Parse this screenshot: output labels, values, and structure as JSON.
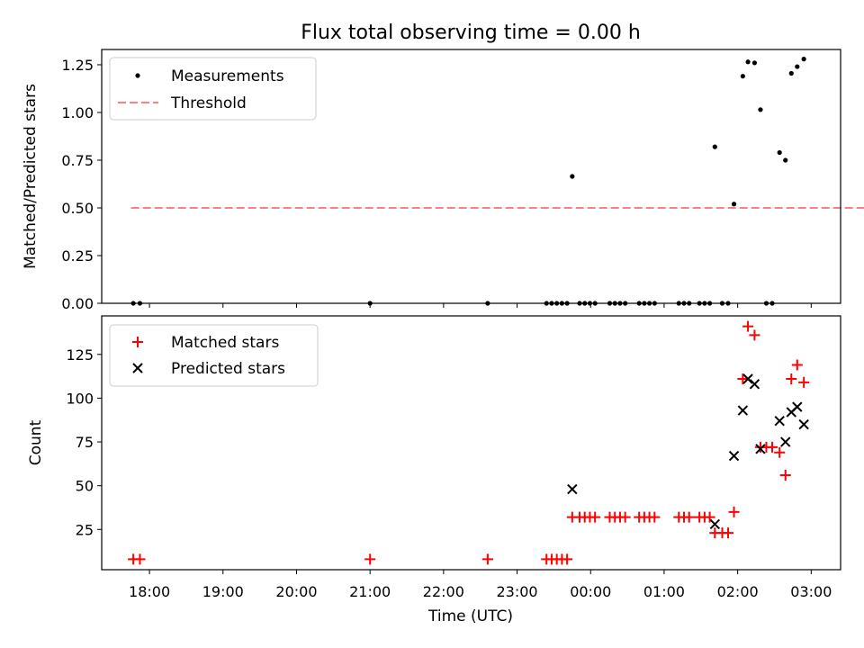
{
  "chart_data": {
    "title": "Flux total observing time = 0.00 h",
    "xlabel": "Time (UTC)",
    "x_range_hours": [
      -0.65,
      9.4
    ],
    "x_ticks": [
      {
        "v": 0,
        "label": "18:00"
      },
      {
        "v": 1,
        "label": "19:00"
      },
      {
        "v": 2,
        "label": "20:00"
      },
      {
        "v": 3,
        "label": "21:00"
      },
      {
        "v": 4,
        "label": "22:00"
      },
      {
        "v": 5,
        "label": "23:00"
      },
      {
        "v": 6,
        "label": "00:00"
      },
      {
        "v": 7,
        "label": "01:00"
      },
      {
        "v": 8,
        "label": "02:00"
      },
      {
        "v": 9,
        "label": "03:00"
      }
    ],
    "top": {
      "type": "scatter",
      "ylabel": "Matched/Predicted stars",
      "ylim": [
        0,
        1.33
      ],
      "y_ticks": [
        {
          "v": 0,
          "label": "0.00"
        },
        {
          "v": 0.25,
          "label": "0.25"
        },
        {
          "v": 0.5,
          "label": "0.50"
        },
        {
          "v": 0.75,
          "label": "0.75"
        },
        {
          "v": 1.0,
          "label": "1.00"
        },
        {
          "v": 1.25,
          "label": "1.25"
        }
      ],
      "legend": [
        {
          "label": "Measurements",
          "color": "#000000"
        },
        {
          "label": "Threshold",
          "color": "#ff7f7f"
        }
      ],
      "threshold": {
        "value": 0.5,
        "x_start": -0.25,
        "x_end": 9.9
      },
      "measurements": [
        [
          -0.22,
          0
        ],
        [
          -0.13,
          0
        ],
        [
          3.0,
          0
        ],
        [
          4.6,
          0
        ],
        [
          5.4,
          0
        ],
        [
          5.47,
          0
        ],
        [
          5.54,
          0
        ],
        [
          5.61,
          0
        ],
        [
          5.68,
          0
        ],
        [
          5.75,
          0.665
        ],
        [
          5.85,
          0
        ],
        [
          5.92,
          0
        ],
        [
          5.99,
          0
        ],
        [
          6.06,
          0
        ],
        [
          6.26,
          0
        ],
        [
          6.33,
          0
        ],
        [
          6.4,
          0
        ],
        [
          6.47,
          0
        ],
        [
          6.66,
          0
        ],
        [
          6.73,
          0
        ],
        [
          6.8,
          0
        ],
        [
          6.87,
          0
        ],
        [
          7.2,
          0
        ],
        [
          7.27,
          0
        ],
        [
          7.34,
          0
        ],
        [
          7.48,
          0
        ],
        [
          7.55,
          0
        ],
        [
          7.62,
          0
        ],
        [
          7.69,
          0.82
        ],
        [
          7.79,
          0
        ],
        [
          7.87,
          0
        ],
        [
          7.95,
          0.52
        ],
        [
          8.07,
          1.19
        ],
        [
          8.14,
          1.265
        ],
        [
          8.23,
          1.26
        ],
        [
          8.31,
          1.015
        ],
        [
          8.39,
          0
        ],
        [
          8.47,
          0
        ],
        [
          8.57,
          0.79
        ],
        [
          8.65,
          0.75
        ],
        [
          8.73,
          1.205
        ],
        [
          8.81,
          1.24
        ],
        [
          8.9,
          1.28
        ]
      ]
    },
    "bottom": {
      "type": "scatter",
      "ylabel": "Count",
      "ylim": [
        2,
        147
      ],
      "y_ticks": [
        {
          "v": 25,
          "label": "25"
        },
        {
          "v": 50,
          "label": "50"
        },
        {
          "v": 75,
          "label": "75"
        },
        {
          "v": 100,
          "label": "100"
        },
        {
          "v": 125,
          "label": "125"
        }
      ],
      "legend": [
        {
          "label": "Matched stars",
          "color": "#ff0000"
        },
        {
          "label": "Predicted stars",
          "color": "#000000"
        }
      ],
      "matched": [
        [
          -0.22,
          8
        ],
        [
          -0.13,
          8
        ],
        [
          3.0,
          8
        ],
        [
          4.6,
          8
        ],
        [
          5.4,
          8
        ],
        [
          5.47,
          8
        ],
        [
          5.54,
          8
        ],
        [
          5.61,
          8
        ],
        [
          5.68,
          8
        ],
        [
          5.75,
          32
        ],
        [
          5.85,
          32
        ],
        [
          5.92,
          32
        ],
        [
          5.99,
          32
        ],
        [
          6.06,
          32
        ],
        [
          6.26,
          32
        ],
        [
          6.33,
          32
        ],
        [
          6.4,
          32
        ],
        [
          6.47,
          32
        ],
        [
          6.66,
          32
        ],
        [
          6.73,
          32
        ],
        [
          6.8,
          32
        ],
        [
          6.87,
          32
        ],
        [
          7.2,
          32
        ],
        [
          7.27,
          32
        ],
        [
          7.34,
          32
        ],
        [
          7.48,
          32
        ],
        [
          7.55,
          32
        ],
        [
          7.62,
          32
        ],
        [
          7.69,
          23
        ],
        [
          7.79,
          23
        ],
        [
          7.87,
          23
        ],
        [
          7.95,
          35
        ],
        [
          8.07,
          111
        ],
        [
          8.14,
          141
        ],
        [
          8.23,
          136
        ],
        [
          8.31,
          72
        ],
        [
          8.39,
          72
        ],
        [
          8.47,
          72
        ],
        [
          8.57,
          69
        ],
        [
          8.65,
          56
        ],
        [
          8.73,
          111
        ],
        [
          8.81,
          119
        ],
        [
          8.9,
          109
        ]
      ],
      "predicted": [
        [
          5.75,
          48
        ],
        [
          7.69,
          28
        ],
        [
          7.95,
          67
        ],
        [
          8.07,
          93
        ],
        [
          8.14,
          111
        ],
        [
          8.23,
          108
        ],
        [
          8.31,
          71
        ],
        [
          8.57,
          87
        ],
        [
          8.65,
          75
        ],
        [
          8.73,
          92
        ],
        [
          8.81,
          95
        ],
        [
          8.9,
          85
        ]
      ]
    }
  }
}
